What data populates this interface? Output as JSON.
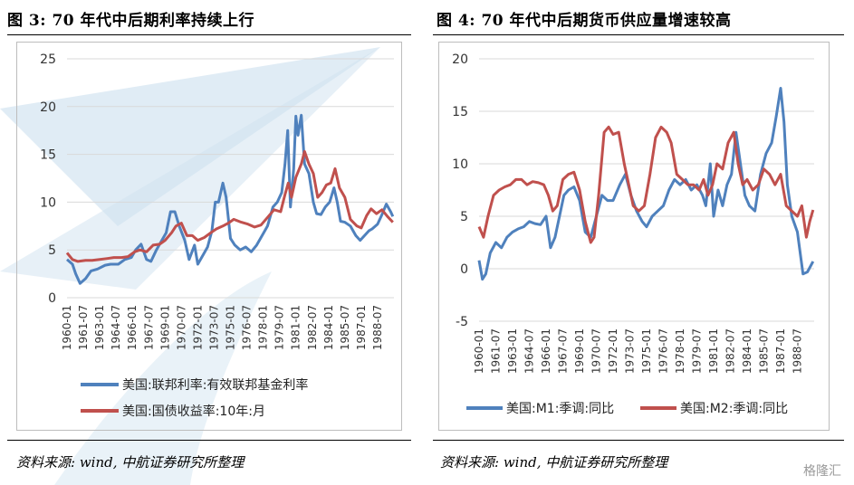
{
  "left_panel": {
    "title": "图 3: 70 年代中后期利率持续上行",
    "source": "资料来源: wind, 中航证券研究所整理"
  },
  "right_panel": {
    "title": "图 4: 70 年代中后期货币供应量增速较高",
    "source": "资料来源: wind, 中航证券研究所整理"
  },
  "watermark": "格隆汇",
  "colors": {
    "blue": "#4f81bd",
    "red": "#c0504d",
    "grid": "#d9d9d9",
    "bg_logo": "#cfe2f0"
  },
  "chart_data": [
    {
      "type": "line",
      "title": "图 3: 70 年代中后期利率持续上行",
      "xlabel": "",
      "ylabel": "",
      "ylim": [
        0,
        25
      ],
      "yticks": [
        0,
        5,
        10,
        15,
        20,
        25
      ],
      "xlim": [
        1960.0,
        1990.0
      ],
      "xticks": [
        "1960-01",
        "1961-07",
        "1963-01",
        "1964-07",
        "1966-01",
        "1967-07",
        "1969-01",
        "1970-07",
        "1972-01",
        "1973-07",
        "1975-01",
        "1976-07",
        "1978-01",
        "1979-07",
        "1981-01",
        "1982-07",
        "1984-01",
        "1985-07",
        "1987-01",
        "1988-07"
      ],
      "legend_position": "bottom",
      "series": [
        {
          "name": "美国:联邦利率:有效联邦基金利率",
          "color": "#4f81bd",
          "x": [
            1960.0,
            1960.5,
            1960.8,
            1961.2,
            1961.7,
            1962.2,
            1962.8,
            1963.5,
            1964.0,
            1964.7,
            1965.3,
            1965.9,
            1966.3,
            1966.8,
            1967.3,
            1967.7,
            1968.2,
            1968.7,
            1969.1,
            1969.5,
            1969.9,
            1970.3,
            1970.8,
            1971.2,
            1971.7,
            1972.0,
            1972.5,
            1972.9,
            1973.3,
            1973.6,
            1973.9,
            1974.3,
            1974.6,
            1975.0,
            1975.4,
            1975.9,
            1976.4,
            1976.9,
            1977.4,
            1977.9,
            1978.4,
            1978.9,
            1979.3,
            1979.7,
            1980.0,
            1980.25,
            1980.5,
            1980.8,
            1981.0,
            1981.2,
            1981.5,
            1981.8,
            1982.2,
            1982.6,
            1982.9,
            1983.3,
            1983.7,
            1984.1,
            1984.5,
            1984.8,
            1985.1,
            1985.5,
            1986.0,
            1986.5,
            1986.9,
            1987.3,
            1987.7,
            1988.0,
            1988.5,
            1988.9,
            1989.3,
            1989.7,
            1989.9
          ],
          "values": [
            4.0,
            3.5,
            2.5,
            1.5,
            2.0,
            2.8,
            3.0,
            3.4,
            3.5,
            3.5,
            4.0,
            4.2,
            5.0,
            5.6,
            4.0,
            3.8,
            5.0,
            6.0,
            6.8,
            9.0,
            9.0,
            7.5,
            6.0,
            4.0,
            5.5,
            3.5,
            4.5,
            5.3,
            7.0,
            10.0,
            10.0,
            12.0,
            10.5,
            6.2,
            5.5,
            5.0,
            5.3,
            4.8,
            5.5,
            6.5,
            7.5,
            9.5,
            10.0,
            11.0,
            14.0,
            17.5,
            9.5,
            13.5,
            19.0,
            17.0,
            19.1,
            14.0,
            13.0,
            10.0,
            8.8,
            8.7,
            9.5,
            10.0,
            11.5,
            10.0,
            8.0,
            7.9,
            7.5,
            6.5,
            6.0,
            6.5,
            7.0,
            7.2,
            7.7,
            8.7,
            9.8,
            9.0,
            8.5
          ]
        },
        {
          "name": "美国:国债收益率:10年:月",
          "color": "#c0504d",
          "x": [
            1960.0,
            1960.5,
            1961.0,
            1961.7,
            1962.3,
            1963.0,
            1963.7,
            1964.3,
            1965.0,
            1965.6,
            1966.2,
            1966.7,
            1967.3,
            1967.9,
            1968.5,
            1969.0,
            1969.6,
            1970.0,
            1970.5,
            1971.0,
            1971.5,
            1972.0,
            1972.6,
            1973.2,
            1973.7,
            1974.3,
            1974.8,
            1975.3,
            1976.0,
            1976.6,
            1977.2,
            1977.8,
            1978.4,
            1979.0,
            1979.6,
            1980.0,
            1980.3,
            1980.6,
            1981.0,
            1981.5,
            1981.8,
            1982.2,
            1982.6,
            1983.0,
            1983.4,
            1983.8,
            1984.2,
            1984.6,
            1985.0,
            1985.5,
            1986.0,
            1986.6,
            1987.0,
            1987.5,
            1987.9,
            1988.4,
            1988.9,
            1989.4,
            1989.9
          ],
          "values": [
            4.7,
            4.0,
            3.8,
            3.9,
            3.9,
            4.0,
            4.1,
            4.2,
            4.2,
            4.3,
            4.8,
            5.0,
            4.8,
            5.5,
            5.6,
            6.0,
            6.8,
            7.5,
            7.8,
            6.5,
            6.5,
            6.0,
            6.3,
            6.8,
            7.2,
            7.5,
            7.8,
            8.2,
            7.9,
            7.7,
            7.4,
            7.6,
            8.4,
            9.2,
            9.0,
            10.8,
            12.0,
            10.5,
            12.6,
            14.0,
            15.3,
            14.0,
            13.0,
            10.5,
            11.0,
            11.8,
            12.0,
            13.5,
            11.5,
            10.5,
            8.2,
            7.5,
            7.3,
            8.6,
            9.3,
            8.8,
            9.2,
            8.5,
            7.9
          ]
        }
      ]
    },
    {
      "type": "line",
      "title": "图 4: 70 年代中后期货币供应量增速较高",
      "xlabel": "",
      "ylabel": "",
      "ylim": [
        -5,
        20
      ],
      "yticks": [
        -5,
        0,
        5,
        10,
        15,
        20
      ],
      "xlim": [
        1960.0,
        1990.0
      ],
      "xticks": [
        "1960-01",
        "1961-07",
        "1963-01",
        "1964-07",
        "1966-01",
        "1967-07",
        "1969-01",
        "1970-07",
        "1972-01",
        "1973-07",
        "1975-01",
        "1976-07",
        "1978-01",
        "1979-07",
        "1981-01",
        "1982-07",
        "1984-01",
        "1985-07",
        "1987-01",
        "1988-07"
      ],
      "legend_position": "bottom",
      "series": [
        {
          "name": "美国:M1:季调:同比",
          "color": "#4f81bd",
          "x": [
            1960.0,
            1960.3,
            1960.6,
            1961.0,
            1961.5,
            1962.0,
            1962.5,
            1963.0,
            1963.5,
            1964.0,
            1964.5,
            1965.0,
            1965.5,
            1966.0,
            1966.4,
            1966.8,
            1967.2,
            1967.6,
            1968.0,
            1968.5,
            1969.0,
            1969.5,
            1970.0,
            1970.5,
            1971.0,
            1971.5,
            1972.0,
            1972.6,
            1973.1,
            1973.6,
            1974.1,
            1974.6,
            1975.0,
            1975.5,
            1976.0,
            1976.5,
            1977.0,
            1977.5,
            1978.0,
            1978.5,
            1979.0,
            1979.5,
            1980.0,
            1980.3,
            1980.7,
            1981.0,
            1981.4,
            1981.8,
            1982.2,
            1982.6,
            1983.0,
            1983.4,
            1983.8,
            1984.2,
            1984.7,
            1985.2,
            1985.7,
            1986.2,
            1986.6,
            1987.0,
            1987.3,
            1987.6,
            1988.0,
            1988.5,
            1989.0,
            1989.4,
            1989.9
          ],
          "values": [
            0.8,
            -1.0,
            -0.5,
            1.5,
            2.5,
            2.0,
            3.0,
            3.5,
            3.8,
            4.0,
            4.5,
            4.3,
            4.2,
            5.0,
            2.0,
            3.0,
            5.0,
            7.0,
            7.5,
            7.8,
            6.5,
            3.5,
            3.0,
            5.0,
            7.0,
            6.5,
            6.5,
            8.0,
            9.0,
            7.0,
            5.5,
            4.5,
            4.0,
            5.0,
            5.5,
            6.0,
            7.5,
            8.5,
            8.0,
            8.5,
            7.5,
            8.0,
            7.0,
            6.0,
            10.0,
            5.0,
            7.5,
            6.0,
            8.0,
            9.0,
            13.0,
            10.0,
            7.0,
            6.0,
            5.5,
            9.0,
            11.0,
            12.0,
            14.5,
            17.2,
            14.0,
            8.0,
            5.0,
            3.5,
            -0.5,
            -0.3,
            0.7
          ]
        },
        {
          "name": "美国:M2:季调:同比",
          "color": "#c0504d",
          "x": [
            1960.0,
            1960.4,
            1960.8,
            1961.3,
            1961.8,
            1962.3,
            1962.8,
            1963.3,
            1963.8,
            1964.3,
            1964.8,
            1965.3,
            1965.8,
            1966.2,
            1966.6,
            1967.0,
            1967.5,
            1968.0,
            1968.5,
            1969.0,
            1969.5,
            1970.0,
            1970.3,
            1970.7,
            1971.2,
            1971.6,
            1972.0,
            1972.5,
            1973.0,
            1973.4,
            1973.8,
            1974.3,
            1974.8,
            1975.3,
            1975.8,
            1976.3,
            1976.8,
            1977.2,
            1977.7,
            1978.2,
            1978.7,
            1979.2,
            1979.7,
            1980.1,
            1980.5,
            1980.9,
            1981.3,
            1981.8,
            1982.3,
            1982.8,
            1983.2,
            1983.6,
            1984.0,
            1984.5,
            1985.0,
            1985.5,
            1986.0,
            1986.5,
            1987.0,
            1987.5,
            1988.0,
            1988.5,
            1988.9,
            1989.3,
            1989.6,
            1989.9
          ],
          "values": [
            4.0,
            3.0,
            5.0,
            7.0,
            7.5,
            7.8,
            8.0,
            8.5,
            8.5,
            8.0,
            8.3,
            8.2,
            8.0,
            7.0,
            5.5,
            6.0,
            8.5,
            9.0,
            9.2,
            7.5,
            4.5,
            2.5,
            3.0,
            7.0,
            13.0,
            13.5,
            12.8,
            13.0,
            10.0,
            8.0,
            6.0,
            5.5,
            6.0,
            9.0,
            12.5,
            13.5,
            13.0,
            12.0,
            9.0,
            8.5,
            8.0,
            8.0,
            7.5,
            8.5,
            7.0,
            8.0,
            10.0,
            9.5,
            12.0,
            13.0,
            10.0,
            8.0,
            8.5,
            7.5,
            8.0,
            9.5,
            9.0,
            8.0,
            9.0,
            6.0,
            5.5,
            5.0,
            6.0,
            3.0,
            4.5,
            5.6
          ]
        }
      ]
    }
  ]
}
